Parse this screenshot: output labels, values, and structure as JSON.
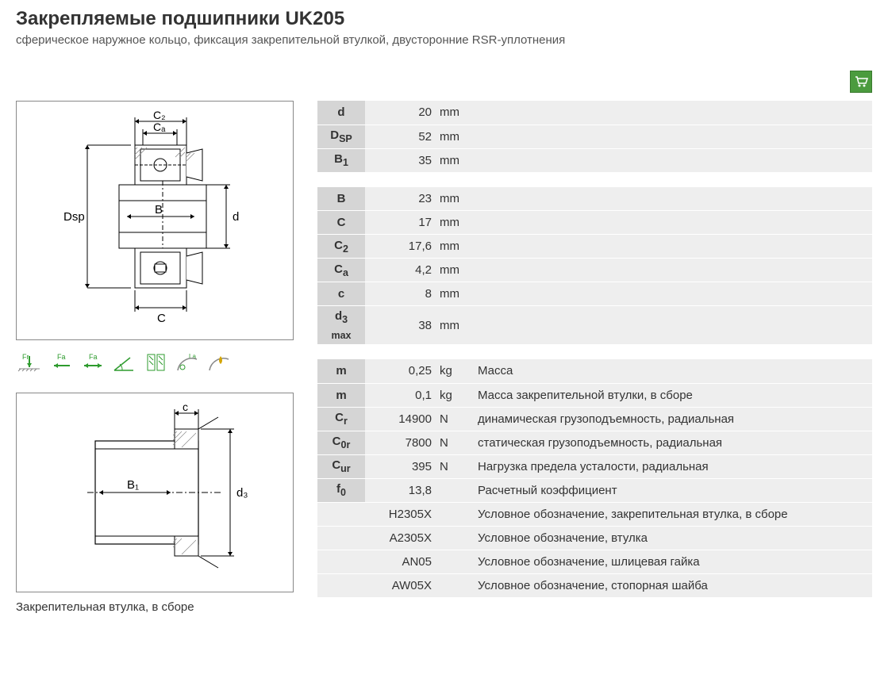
{
  "header": {
    "title": "Закрепляемые подшипники UK205",
    "subtitle": "сферическое наружное кольцо, фиксация закрепительной втулкой, двусторонние RSR-уплотнения"
  },
  "drawing1": {
    "labels": {
      "C2": "C₂",
      "Ca": "Cₐ",
      "Dsp": "Dsp",
      "B": "B",
      "d": "d",
      "C": "C"
    }
  },
  "drawing2": {
    "labels": {
      "c": "c",
      "B1": "B₁",
      "d3": "d₃"
    },
    "caption": "Закрепительная втулка, в сборе"
  },
  "symbols": [
    "Fr",
    "Fa",
    "Fa",
    "",
    "",
    "La",
    ""
  ],
  "tables": {
    "group1": [
      {
        "sym": "d",
        "val": "20",
        "unit": "mm"
      },
      {
        "sym": "D<sub>SP</sub>",
        "val": "52",
        "unit": "mm"
      },
      {
        "sym": "B<sub>1</sub>",
        "val": "35",
        "unit": "mm"
      }
    ],
    "group2": [
      {
        "sym": "B",
        "val": "23",
        "unit": "mm"
      },
      {
        "sym": "C",
        "val": "17",
        "unit": "mm"
      },
      {
        "sym": "C<sub>2</sub>",
        "val": "17,6",
        "unit": "mm"
      },
      {
        "sym": "C<sub>a</sub>",
        "val": "4,2",
        "unit": "mm"
      },
      {
        "sym": "c",
        "val": "8",
        "unit": "mm"
      },
      {
        "sym": "d<sub>3 max</sub>",
        "val": "38",
        "unit": "mm"
      }
    ],
    "group3": [
      {
        "sym": "m",
        "val": "0,25",
        "unit": "kg",
        "desc": "Масса"
      },
      {
        "sym": "m",
        "val": "0,1",
        "unit": "kg",
        "desc": "Масса закрепительной втулки, в сборе"
      },
      {
        "sym": "C<sub>r</sub>",
        "val": "14900",
        "unit": "N",
        "desc": "динамическая грузоподъемность, радиальная"
      },
      {
        "sym": "C<sub>0r</sub>",
        "val": "7800",
        "unit": "N",
        "desc": "статическая грузоподъемность, радиальная"
      },
      {
        "sym": "C<sub>ur</sub>",
        "val": "395",
        "unit": "N",
        "desc": "Нагрузка предела усталости, радиальная"
      },
      {
        "sym": "f<sub>0</sub>",
        "val": "13,8",
        "unit": "",
        "desc": "Расчетный коэффициент"
      },
      {
        "sym": "",
        "val": "H2305X",
        "unit": "",
        "desc": "Условное обозначение, закрепительная втулка, в сборе"
      },
      {
        "sym": "",
        "val": "A2305X",
        "unit": "",
        "desc": "Условное обозначение, втулка"
      },
      {
        "sym": "",
        "val": "AN05",
        "unit": "",
        "desc": "Условное обозначение, шлицевая гайка"
      },
      {
        "sym": "",
        "val": "AW05X",
        "unit": "",
        "desc": "Условное обозначение, стопорная шайба"
      }
    ]
  },
  "colors": {
    "sym_bg": "#d5d5d5",
    "val_bg": "#eeeeee",
    "icon_bg": "#4b9b3e",
    "green": "#2e9b2e",
    "gold": "#d4a500"
  }
}
